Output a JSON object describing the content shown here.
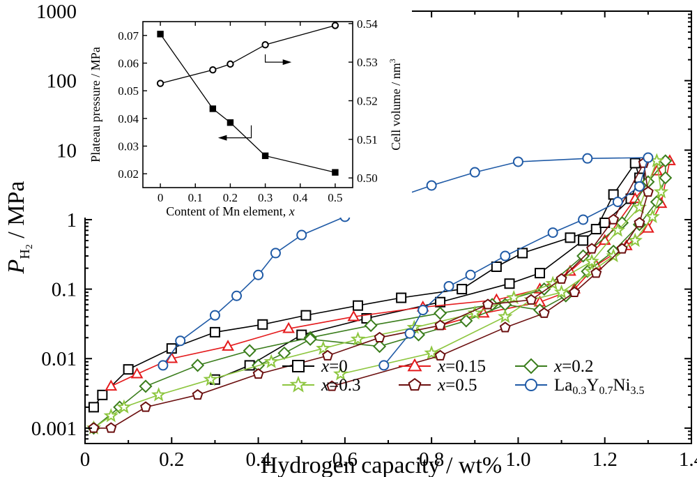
{
  "chart_data": [
    {
      "type": "line",
      "title": "",
      "xlabel": "Hydrogen capacity / wt%",
      "ylabel": {
        "main": "P",
        "sub": "H",
        "subsub": "2",
        "unit": " / MPa"
      },
      "xlim": [
        0,
        1.4
      ],
      "ylim": [
        0.0006,
        1000
      ],
      "yscale": "log",
      "xticks": [
        "0",
        "0.2",
        "0.4",
        "0.6",
        "0.8",
        "1.0",
        "1.2",
        "1.4"
      ],
      "yticks": [
        "0.001",
        "0.01",
        "0.1",
        "1",
        "10",
        "100",
        "1000"
      ],
      "xtick_values": [
        0,
        0.2,
        0.4,
        0.6,
        0.8,
        1.0,
        1.2,
        1.4
      ],
      "ytick_values": [
        0.001,
        0.01,
        0.1,
        1,
        10,
        100,
        1000
      ],
      "legend_position": "bottom-right",
      "series": [
        {
          "name": "x=0",
          "legend": {
            "italic": "x",
            "rest": "=0"
          },
          "color": "#000000",
          "marker": "square",
          "absorption": [
            [
              0.02,
              0.002
            ],
            [
              0.04,
              0.003
            ],
            [
              0.1,
              0.007
            ],
            [
              0.2,
              0.014
            ],
            [
              0.3,
              0.024
            ],
            [
              0.41,
              0.031
            ],
            [
              0.51,
              0.042
            ],
            [
              0.63,
              0.058
            ],
            [
              0.73,
              0.075
            ],
            [
              0.87,
              0.1
            ],
            [
              0.95,
              0.21
            ],
            [
              1.01,
              0.33
            ],
            [
              1.12,
              0.55
            ],
            [
              1.18,
              0.73
            ],
            [
              1.22,
              2.3
            ],
            [
              1.27,
              6.5
            ]
          ],
          "desorption": [
            [
              1.27,
              6.5
            ],
            [
              1.28,
              4.0
            ],
            [
              1.26,
              2.0
            ],
            [
              1.2,
              0.9
            ],
            [
              1.15,
              0.5
            ],
            [
              1.05,
              0.17
            ],
            [
              0.98,
              0.12
            ],
            [
              0.82,
              0.065
            ],
            [
              0.65,
              0.038
            ],
            [
              0.5,
              0.022
            ],
            [
              0.38,
              0.008
            ],
            [
              0.3,
              0.005
            ]
          ]
        },
        {
          "name": "x=0.15",
          "legend": {
            "italic": "x",
            "rest": "=0.15"
          },
          "color": "#e41a1c",
          "marker": "triangle",
          "absorption": [
            [
              0.06,
              0.004
            ],
            [
              0.12,
              0.006
            ],
            [
              0.2,
              0.01
            ],
            [
              0.33,
              0.015
            ],
            [
              0.47,
              0.027
            ],
            [
              0.62,
              0.04
            ],
            [
              0.78,
              0.055
            ],
            [
              0.95,
              0.07
            ],
            [
              1.05,
              0.1
            ],
            [
              1.12,
              0.18
            ],
            [
              1.2,
              0.5
            ],
            [
              1.27,
              2.0
            ],
            [
              1.32,
              5.0
            ],
            [
              1.35,
              7.0
            ]
          ],
          "desorption": [
            [
              1.35,
              7.0
            ],
            [
              1.33,
              1.7
            ],
            [
              1.3,
              0.75
            ],
            [
              1.25,
              0.42
            ],
            [
              1.18,
              0.22
            ],
            [
              1.13,
              0.1
            ],
            [
              1.05,
              0.065
            ],
            [
              0.92,
              0.045
            ],
            [
              0.82,
              0.03
            ]
          ]
        },
        {
          "name": "x=0.2",
          "legend": {
            "italic": "x",
            "rest": "=0.2"
          },
          "color": "#3a7d1c",
          "marker": "diamond",
          "absorption": [
            [
              0.02,
              0.001
            ],
            [
              0.08,
              0.002
            ],
            [
              0.14,
              0.004
            ],
            [
              0.26,
              0.008
            ],
            [
              0.38,
              0.013
            ],
            [
              0.52,
              0.02
            ],
            [
              0.66,
              0.03
            ],
            [
              0.82,
              0.045
            ],
            [
              0.94,
              0.06
            ],
            [
              1.06,
              0.1
            ],
            [
              1.15,
              0.3
            ],
            [
              1.24,
              0.9
            ],
            [
              1.3,
              3.5
            ],
            [
              1.34,
              7.0
            ]
          ],
          "desorption": [
            [
              1.34,
              7.0
            ],
            [
              1.34,
              4.0
            ],
            [
              1.32,
              1.8
            ],
            [
              1.28,
              0.85
            ],
            [
              1.22,
              0.35
            ],
            [
              1.16,
              0.18
            ],
            [
              1.11,
              0.08
            ],
            [
              1.05,
              0.05
            ],
            [
              0.97,
              0.06
            ],
            [
              0.88,
              0.035
            ],
            [
              0.77,
              0.022
            ],
            [
              0.68,
              0.015
            ],
            [
              0.52,
              0.019
            ],
            [
              0.46,
              0.012
            ],
            [
              0.4,
              0.008
            ]
          ]
        },
        {
          "name": "x=0.3",
          "legend": {
            "italic": "x",
            "rest": "=0.3"
          },
          "color": "#8dc63f",
          "marker": "star",
          "absorption": [
            [
              0.02,
              0.001
            ],
            [
              0.06,
              0.0015
            ],
            [
              0.09,
              0.002
            ],
            [
              0.17,
              0.003
            ],
            [
              0.29,
              0.005
            ],
            [
              0.43,
              0.009
            ],
            [
              0.55,
              0.014
            ],
            [
              0.63,
              0.019
            ],
            [
              0.76,
              0.028
            ],
            [
              0.9,
              0.045
            ],
            [
              0.99,
              0.075
            ],
            [
              1.08,
              0.12
            ],
            [
              1.17,
              0.25
            ],
            [
              1.23,
              0.7
            ],
            [
              1.28,
              1.5
            ],
            [
              1.32,
              7.0
            ]
          ],
          "desorption": [
            [
              1.32,
              7.0
            ],
            [
              1.33,
              2.5
            ],
            [
              1.31,
              1.1
            ],
            [
              1.27,
              0.5
            ],
            [
              1.22,
              0.3
            ],
            [
              1.17,
              0.18
            ],
            [
              1.1,
              0.09
            ],
            [
              1.03,
              0.07
            ],
            [
              0.97,
              0.04
            ],
            [
              0.8,
              0.012
            ],
            [
              0.59,
              0.006
            ]
          ]
        },
        {
          "name": "x=0.5",
          "legend": {
            "italic": "x",
            "rest": "=0.5"
          },
          "color": "#6b0f0f",
          "marker": "pentagon",
          "absorption": [
            [
              0.02,
              0.001
            ],
            [
              0.06,
              0.001
            ],
            [
              0.14,
              0.002
            ],
            [
              0.26,
              0.003
            ],
            [
              0.4,
              0.006
            ],
            [
              0.56,
              0.011
            ],
            [
              0.68,
              0.02
            ],
            [
              0.82,
              0.03
            ],
            [
              0.93,
              0.06
            ],
            [
              1.03,
              0.07
            ],
            [
              1.1,
              0.14
            ],
            [
              1.17,
              0.38
            ],
            [
              1.22,
              1.0
            ],
            [
              1.29,
              6.5
            ]
          ],
          "desorption": [
            [
              1.29,
              6.5
            ],
            [
              1.3,
              2.5
            ],
            [
              1.28,
              0.9
            ],
            [
              1.24,
              0.38
            ],
            [
              1.18,
              0.17
            ],
            [
              1.13,
              0.09
            ],
            [
              1.06,
              0.045
            ],
            [
              0.97,
              0.028
            ],
            [
              0.82,
              0.011
            ],
            [
              0.57,
              0.004
            ]
          ]
        },
        {
          "name": "La0.3Y0.7Ni3.5",
          "legend": {
            "parts": [
              [
                "La",
                ""
              ],
              [
                "0.3",
                "sub"
              ],
              [
                "Y",
                ""
              ],
              [
                "0.7",
                "sub"
              ],
              [
                "Ni",
                ""
              ],
              [
                "3.5",
                "sub"
              ]
            ]
          },
          "color": "#1f5aa6",
          "marker": "circle",
          "absorption": [
            [
              0.18,
              0.008
            ],
            [
              0.22,
              0.018
            ],
            [
              0.3,
              0.042
            ],
            [
              0.35,
              0.08
            ],
            [
              0.4,
              0.16
            ],
            [
              0.44,
              0.33
            ],
            [
              0.5,
              0.6
            ],
            [
              0.6,
              1.1
            ],
            [
              0.7,
              1.9
            ],
            [
              0.8,
              3.1
            ],
            [
              0.9,
              4.8
            ],
            [
              1.0,
              6.8
            ],
            [
              1.16,
              7.6
            ],
            [
              1.3,
              7.8
            ]
          ],
          "desorption": [
            [
              1.3,
              7.8
            ],
            [
              1.28,
              3.0
            ],
            [
              1.23,
              1.8
            ],
            [
              1.15,
              1.0
            ],
            [
              1.08,
              0.65
            ],
            [
              0.97,
              0.3
            ],
            [
              0.89,
              0.16
            ],
            [
              0.84,
              0.11
            ],
            [
              0.78,
              0.05
            ],
            [
              0.75,
              0.023
            ],
            [
              0.69,
              0.008
            ]
          ]
        }
      ]
    },
    {
      "type": "line",
      "title": "",
      "xlabel": {
        "text": "Content of Mn element, ",
        "italic": "x"
      },
      "ylabel": "Plateau pressure / MPa",
      "y2label": {
        "text": "Cell volume / nm",
        "sup": "3"
      },
      "xlim": [
        -0.05,
        0.55
      ],
      "ylim": [
        0.015,
        0.075
      ],
      "y2lim": [
        0.4975,
        0.5405
      ],
      "xticks": [
        "0",
        "0.1",
        "0.2",
        "0.3",
        "0.4",
        "0.5"
      ],
      "xtick_values": [
        0,
        0.1,
        0.2,
        0.3,
        0.4,
        0.5
      ],
      "yticks": [
        "0.02",
        "0.03",
        "0.04",
        "0.05",
        "0.06",
        "0.07"
      ],
      "ytick_values": [
        0.02,
        0.03,
        0.04,
        0.05,
        0.06,
        0.07
      ],
      "y2ticks": [
        "0.50",
        "0.51",
        "0.52",
        "0.53",
        "0.54"
      ],
      "y2tick_values": [
        0.5,
        0.51,
        0.52,
        0.53,
        0.54
      ],
      "series": [
        {
          "axis": "left",
          "marker": "filled-square",
          "x": [
            0,
            0.15,
            0.2,
            0.3,
            0.5
          ],
          "values": [
            0.0705,
            0.0435,
            0.0385,
            0.0265,
            0.0205
          ]
        },
        {
          "axis": "right",
          "marker": "open-circle",
          "x": [
            0,
            0.15,
            0.2,
            0.3,
            0.5
          ],
          "values": [
            0.5245,
            0.528,
            0.5295,
            0.5345,
            0.5395
          ]
        }
      ]
    }
  ]
}
